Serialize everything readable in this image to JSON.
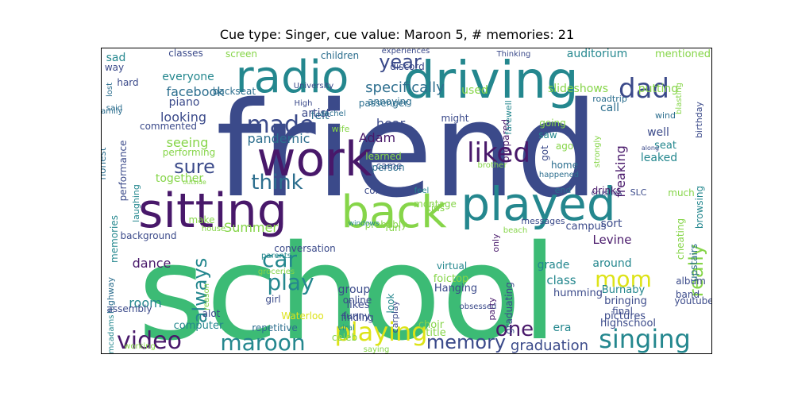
{
  "title": "Cue type: Singer, cue value: Maroon 5, # memories: 21",
  "words": [
    "friend",
    "school",
    "driving",
    "radio",
    "work",
    "sitting",
    "back",
    "played",
    "made",
    "liked",
    "dad",
    "year",
    "specifically",
    "facebook",
    "think",
    "sure",
    "singing",
    "video",
    "maroon",
    "playing",
    "memory",
    "one",
    "mom",
    "play",
    "car",
    "always",
    "really",
    "graduation",
    "room",
    "dance",
    "Adam",
    "pandemic",
    "Summer",
    "seeing",
    "looking",
    "together",
    "hear",
    "felt",
    "artist",
    "wife",
    "used",
    "annoying",
    "passenger",
    "sad",
    "piano",
    "backseat",
    "screen",
    "classes",
    "children",
    "discord",
    "experiences",
    "everyone",
    "auditorium",
    "slideshows",
    "putting",
    "mentioned",
    "Thinking",
    "roadtrip",
    "call",
    "birthday",
    "wind",
    "well",
    "seat",
    "leaked",
    "freaking",
    "home",
    "happened",
    "going",
    "saw",
    "ago",
    "got",
    "end",
    "crushes",
    "drinks",
    "SLC",
    "much",
    "browsing",
    "upstairs",
    "cheating",
    "Levine",
    "sort",
    "campus",
    "messages",
    "only",
    "beach",
    "grade",
    "class",
    "around",
    "humming",
    "bringing",
    "Burnaby",
    "album",
    "band",
    "youtube",
    "pictures",
    "final",
    "highschool",
    "era",
    "party",
    "choir",
    "title",
    "likes",
    "funny",
    "carplay",
    "virtual",
    "foictop",
    "Hanging",
    "group",
    "online",
    "finding",
    "look",
    "conversation",
    "parents",
    "groceries",
    "girl",
    "alot",
    "Waterloo",
    "viral",
    "celeb",
    "saying",
    "obsessed",
    "repetitive",
    "computer",
    "highway",
    "assembly",
    "mcadams",
    "working",
    "reason",
    "make",
    "house",
    "background",
    "memories",
    "performance",
    "laughing",
    "honest",
    "family",
    "lost",
    "said",
    "High",
    "rachel",
    "University",
    "commented",
    "performing",
    "hard",
    "way",
    "constantly",
    "montage",
    "came",
    "learned",
    "person",
    "kids",
    "probably",
    "fun",
    "windows",
    "feel",
    "outside",
    "brother",
    "graduating",
    "prepared",
    "farewell",
    "might",
    "blasting",
    "strongly",
    "along"
  ],
  "colors": {
    "dark_blue": "#3b4a8a",
    "purple": "#48186a",
    "teal": "#24878e",
    "green": "#3cbb75",
    "light_green": "#86d549",
    "yellow": "#dde318",
    "blue": "#2c6e8e"
  }
}
